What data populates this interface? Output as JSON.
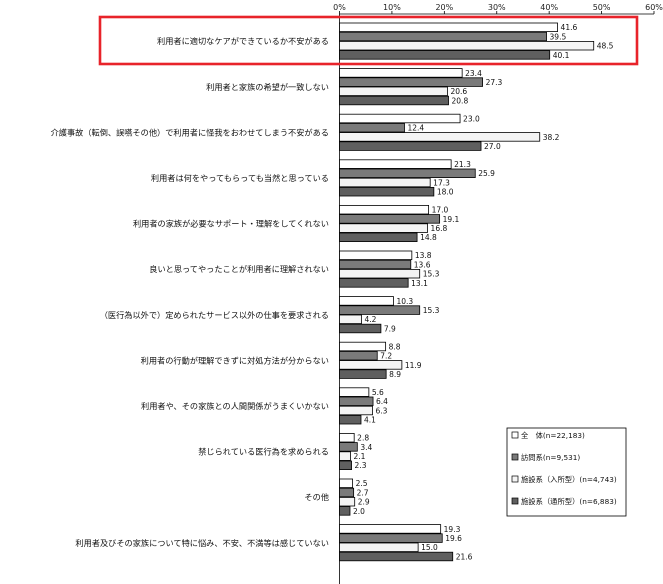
{
  "chart_data": {
    "type": "bar",
    "orientation": "horizontal",
    "title": "",
    "xlabel": "",
    "ylabel": "",
    "xlim": [
      0,
      60
    ],
    "x_tick_labels": [
      "0%",
      "10%",
      "20%",
      "30%",
      "40%",
      "50%",
      "60%"
    ],
    "grid": false,
    "legend_position": "right",
    "categories": [
      "利用者に適切なケアができているか不安がある",
      "利用者と家族の希望が一致しない",
      "介護事故（転倒、誤嚥その他）で利用者に怪我をおわせてしまう不安がある",
      "利用者は何をやってもらっても当然と思っている",
      "利用者の家族が必要なサポート・理解をしてくれない",
      "良いと思ってやったことが利用者に理解されない",
      "（医行為以外で）定められたサービス以外の仕事を要求される",
      "利用者の行動が理解できずに対処方法が分からない",
      "利用者や、その家族との人間関係がうまくいかない",
      "禁じられている医行為を求められる",
      "その他",
      "利用者及びその家族について特に悩み、不安、不満等は感じていない"
    ],
    "series": [
      {
        "name": "全　体(n=22,183)",
        "color": "#ffffff",
        "values": [
          41.6,
          23.4,
          23.0,
          21.3,
          17.0,
          13.8,
          10.3,
          8.8,
          5.6,
          2.8,
          2.5,
          19.3
        ]
      },
      {
        "name": "訪問系(n=9,531)",
        "color": "#7a7a7a",
        "values": [
          39.5,
          27.3,
          12.4,
          25.9,
          19.1,
          13.6,
          15.3,
          7.2,
          6.4,
          3.4,
          2.7,
          19.6
        ]
      },
      {
        "name": "施設系（入所型）(n=4,743)",
        "color": "#f4f4f4",
        "values": [
          48.5,
          20.6,
          38.2,
          17.3,
          16.8,
          15.3,
          4.2,
          11.9,
          6.3,
          2.1,
          2.9,
          15.0
        ]
      },
      {
        "name": "施設系（通所型）(n=6,883)",
        "color": "#5f5f5f",
        "values": [
          40.1,
          20.8,
          27.0,
          18.0,
          14.8,
          13.1,
          7.9,
          8.9,
          4.1,
          2.3,
          2.0,
          21.6
        ]
      }
    ],
    "value_labels": [
      [
        "41.6",
        "39.5",
        "48.5",
        "40.1"
      ],
      [
        "23.4",
        "27.3",
        "20.6",
        "20.8"
      ],
      [
        "23.0",
        "12.4",
        "38.2",
        "27.0"
      ],
      [
        "21.3",
        "25.9",
        "17.3",
        "18.0"
      ],
      [
        "17.0",
        "19.1",
        "16.8",
        "14.8"
      ],
      [
        "13.8",
        "13.6",
        "15.3",
        "13.1"
      ],
      [
        "10.3",
        "15.3",
        "4.2",
        "7.9"
      ],
      [
        "8.8",
        "7.2",
        "11.9",
        "8.9"
      ],
      [
        "5.6",
        "6.4",
        "6.3",
        "4.1"
      ],
      [
        "2.8",
        "3.4",
        "2.1",
        "2.3"
      ],
      [
        "2.5",
        "2.7",
        "2.9",
        "2.0"
      ],
      [
        "19.3",
        "19.6",
        "15.0",
        "21.6"
      ]
    ],
    "highlighted_category": "利用者に適切なケアができているか不安がある",
    "highlight_color": "#e8232a"
  }
}
